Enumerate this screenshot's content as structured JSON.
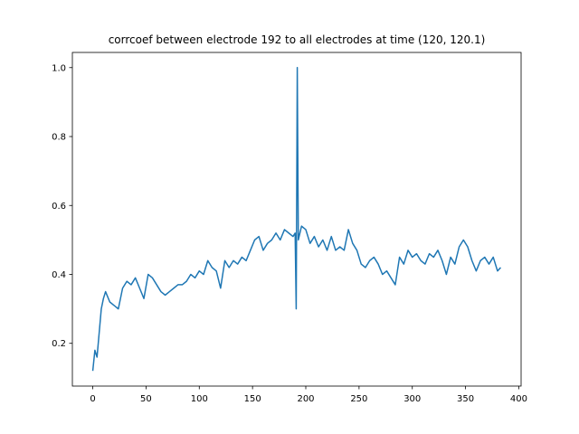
{
  "chart_data": {
    "type": "line",
    "title": "corrcoef between electrode 192 to all electrodes at time (120, 120.1)",
    "x": [
      0,
      2,
      4,
      6,
      8,
      10,
      12,
      16,
      20,
      24,
      28,
      32,
      36,
      40,
      44,
      48,
      52,
      56,
      60,
      64,
      68,
      72,
      76,
      80,
      84,
      88,
      92,
      96,
      100,
      104,
      108,
      112,
      116,
      120,
      124,
      128,
      132,
      136,
      140,
      144,
      148,
      152,
      156,
      160,
      164,
      168,
      172,
      176,
      180,
      184,
      188,
      190,
      191,
      192,
      193,
      196,
      200,
      204,
      208,
      212,
      216,
      220,
      224,
      228,
      232,
      236,
      240,
      244,
      248,
      252,
      256,
      260,
      264,
      268,
      272,
      276,
      280,
      284,
      288,
      292,
      296,
      300,
      304,
      308,
      312,
      316,
      320,
      324,
      328,
      332,
      336,
      340,
      344,
      348,
      352,
      356,
      360,
      364,
      368,
      372,
      376,
      380,
      383
    ],
    "series": [
      {
        "name": "corrcoef",
        "color": "#1f77b4",
        "values": [
          0.12,
          0.18,
          0.16,
          0.23,
          0.3,
          0.33,
          0.35,
          0.32,
          0.31,
          0.3,
          0.36,
          0.38,
          0.37,
          0.39,
          0.36,
          0.33,
          0.4,
          0.39,
          0.37,
          0.35,
          0.34,
          0.35,
          0.36,
          0.37,
          0.37,
          0.38,
          0.4,
          0.39,
          0.41,
          0.4,
          0.44,
          0.42,
          0.41,
          0.36,
          0.44,
          0.42,
          0.44,
          0.43,
          0.45,
          0.44,
          0.47,
          0.5,
          0.51,
          0.47,
          0.49,
          0.5,
          0.52,
          0.5,
          0.53,
          0.52,
          0.51,
          0.52,
          0.3,
          1.0,
          0.5,
          0.54,
          0.53,
          0.49,
          0.51,
          0.48,
          0.5,
          0.47,
          0.51,
          0.47,
          0.48,
          0.47,
          0.53,
          0.49,
          0.47,
          0.43,
          0.42,
          0.44,
          0.45,
          0.43,
          0.4,
          0.41,
          0.39,
          0.37,
          0.45,
          0.43,
          0.47,
          0.45,
          0.46,
          0.44,
          0.43,
          0.46,
          0.45,
          0.47,
          0.44,
          0.4,
          0.45,
          0.43,
          0.48,
          0.5,
          0.48,
          0.44,
          0.41,
          0.44,
          0.45,
          0.43,
          0.45,
          0.41,
          0.42
        ]
      }
    ],
    "xlim": [
      -19.15,
      402.15
    ],
    "ylim": [
      0.076,
      1.044
    ],
    "xticks": [
      0,
      50,
      100,
      150,
      200,
      250,
      300,
      350,
      400
    ],
    "yticks": [
      0.2,
      0.4,
      0.6,
      0.8,
      {
        "value": 1.0,
        "label": "1.0"
      }
    ]
  }
}
